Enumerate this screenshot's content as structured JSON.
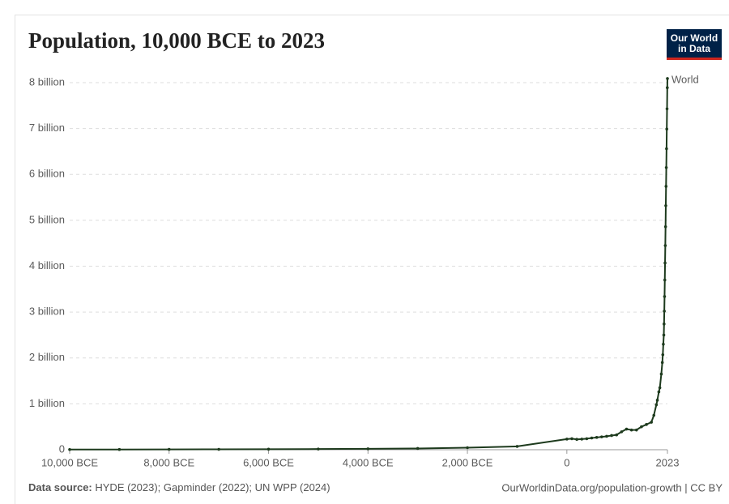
{
  "chart_data": {
    "type": "line",
    "title": "Population, 10,000 BCE to 2023",
    "logo": [
      "Our World",
      "in Data"
    ],
    "source_label": "Data source:",
    "source": "HYDE (2023); Gapminder (2022); UN WPP (2024)",
    "credit": "OurWorldinData.org/population-growth | CC BY",
    "x": [
      -10000,
      -9000,
      -8000,
      -7000,
      -6000,
      -5000,
      -4000,
      -3000,
      -2000,
      -1000,
      0,
      100,
      200,
      300,
      400,
      500,
      600,
      700,
      800,
      900,
      1000,
      1100,
      1200,
      1300,
      1400,
      1500,
      1600,
      1700,
      1750,
      1800,
      1820,
      1850,
      1870,
      1900,
      1920,
      1930,
      1940,
      1950,
      1955,
      1960,
      1965,
      1970,
      1975,
      1980,
      1985,
      1990,
      1995,
      2000,
      2005,
      2010,
      2015,
      2020,
      2023
    ],
    "series": [
      {
        "name": "World",
        "color": "#1d3a1d",
        "values": [
          4400000,
          5500000,
          7000000,
          8900000,
          11400000,
          14800000,
          19600000,
          27000000,
          44000000,
          72000000,
          232000000,
          240000000,
          226000000,
          232000000,
          240000000,
          255000000,
          268000000,
          280000000,
          292000000,
          310000000,
          323000000,
          390000000,
          450000000,
          430000000,
          430000000,
          500000000,
          550000000,
          600000000,
          750000000,
          980000000,
          1080000000,
          1260000000,
          1350000000,
          1650000000,
          1900000000,
          2070000000,
          2300000000,
          2500000000,
          2740000000,
          3020000000,
          3340000000,
          3700000000,
          4070000000,
          4450000000,
          4860000000,
          5320000000,
          5740000000,
          6150000000,
          6560000000,
          6990000000,
          7430000000,
          7890000000,
          8090000000
        ]
      }
    ],
    "xlim": [
      -10000,
      2023
    ],
    "xticks": [
      {
        "value": -10000,
        "label": "10,000 BCE"
      },
      {
        "value": -8000,
        "label": "8,000 BCE"
      },
      {
        "value": -6000,
        "label": "6,000 BCE"
      },
      {
        "value": -4000,
        "label": "4,000 BCE"
      },
      {
        "value": -2000,
        "label": "2,000 BCE"
      },
      0,
      2023
    ],
    "ylim": [
      0,
      8000000000
    ],
    "yticks": [
      0,
      {
        "value": 1000000000,
        "label": "1 billion"
      },
      {
        "value": 2000000000,
        "label": "2 billion"
      },
      {
        "value": 3000000000,
        "label": "3 billion"
      },
      {
        "value": 4000000000,
        "label": "4 billion"
      },
      {
        "value": 5000000000,
        "label": "5 billion"
      },
      {
        "value": 6000000000,
        "label": "6 billion"
      },
      {
        "value": 7000000000,
        "label": "7 billion"
      },
      {
        "value": 8000000000,
        "label": "8 billion"
      }
    ],
    "grid": true
  }
}
